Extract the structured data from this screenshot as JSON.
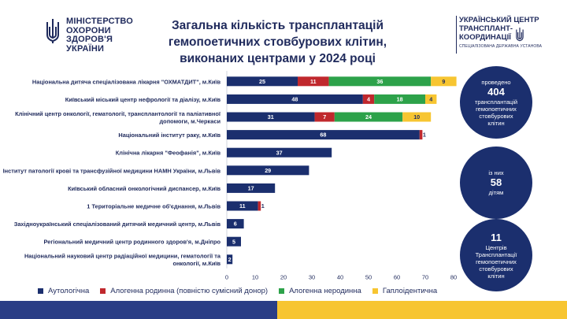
{
  "header": {
    "left_logo_lines": [
      "МІНІСТЕРСТВО",
      "ОХОРОНИ",
      "ЗДОРОВ'Я",
      "УКРАЇНИ"
    ],
    "title_lines": [
      "Загальна кількість трансплантацій",
      "гемопоетичних стовбурових клітин,",
      "виконаних центрами у 2024 році"
    ],
    "right_logo_lines": [
      "УКРАЇНСЬКИЙ ЦЕНТР",
      "ТРАНСПЛАНТ-",
      "КООРДИНАЦІЇ"
    ],
    "right_logo_sub": "СПЕЦІАЛІЗОВАНА ДЕРЖАВНА УСТАНОВА"
  },
  "colors": {
    "autologous": "#1b2f6e",
    "allo_related": "#c0282d",
    "allo_unrelated": "#2da24a",
    "haplo": "#f7c531",
    "navy": "#1b2f6e",
    "footer_blue": "#2a3e86",
    "footer_yellow": "#f7c531"
  },
  "chart_data": {
    "type": "bar",
    "orientation": "horizontal",
    "stacked": true,
    "title": "Загальна кількість трансплантацій гемопоетичних стовбурових клітин, виконаних центрами у 2024 році",
    "categories": [
      [
        "Національна дитяча спеціалізована лікарня \"ОХМАТДИТ\", м.Київ"
      ],
      [
        "Київський міський центр нефрології та діалізу, м.Київ"
      ],
      [
        "Клінічний центр онкології, гематології, трансплантології та паліативної",
        "допомоги, м.Черкаси"
      ],
      [
        "Національний інститут раку, м.Київ"
      ],
      [
        "Клінічна лікарня \"Феофанія\", м.Київ"
      ],
      [
        "Інститут патології крові та трансфузійної медицини НАМН України, м.Львів"
      ],
      [
        "Київський обласний онкологічний диспансер, м.Київ"
      ],
      [
        "1 Територіальне медичне об'єднання, м.Львів"
      ],
      [
        "Західноукраїнський спеціалізований дитячий медичний центр, м.Львів"
      ],
      [
        "Регіональний медичний центр родинного здоров'я, м.Дніпро"
      ],
      [
        "Національний науковий центр радіаційної медицини, гематології та",
        "онкології, м.Київ"
      ]
    ],
    "series": [
      {
        "name": "Аутологічна",
        "color": "#1b2f6e",
        "values": [
          25,
          48,
          31,
          68,
          37,
          29,
          17,
          11,
          6,
          5,
          2
        ]
      },
      {
        "name": "Алогенна родинна (повністю сумісний донор)",
        "color": "#c0282d",
        "values": [
          11,
          4,
          7,
          1,
          0,
          0,
          0,
          1,
          0,
          0,
          0
        ]
      },
      {
        "name": "Алогенна неродинна",
        "color": "#2da24a",
        "values": [
          36,
          18,
          24,
          0,
          0,
          0,
          0,
          0,
          0,
          0,
          0
        ]
      },
      {
        "name": "Гаплоідентична",
        "color": "#f7c531",
        "values": [
          9,
          4,
          10,
          0,
          0,
          0,
          0,
          0,
          0,
          0,
          0
        ]
      }
    ],
    "value_labels": [
      [
        "25",
        "11",
        "36",
        "9"
      ],
      [
        "48",
        "4",
        "18",
        "4"
      ],
      [
        "31",
        "7",
        "24",
        "10"
      ],
      [
        "68",
        "1",
        "",
        ""
      ],
      [
        "37",
        "",
        "",
        ""
      ],
      [
        "29",
        "",
        "",
        ""
      ],
      [
        "17",
        "",
        "",
        ""
      ],
      [
        "11",
        "1",
        "",
        ""
      ],
      [
        "6",
        "",
        "",
        ""
      ],
      [
        "5",
        "",
        "",
        ""
      ],
      [
        "2",
        "",
        "",
        ""
      ]
    ],
    "xlim": [
      0,
      80
    ],
    "xticks": [
      0,
      10,
      20,
      30,
      40,
      50,
      60,
      70,
      80
    ],
    "xlabel": "",
    "ylabel": "",
    "grid": false,
    "legend_position": "bottom"
  },
  "info": [
    {
      "top": "проведено",
      "value": "404",
      "bottom": [
        "трансплантацій",
        "гемопоетичних",
        "стовбурових",
        "клітин"
      ]
    },
    {
      "top": "із них",
      "value": "58",
      "bottom": [
        "дітям"
      ]
    },
    {
      "top": "",
      "value": "11",
      "bottom": [
        "Центрів",
        "Трансплантації",
        "гемопоетичних",
        "стовбурових",
        "клітин"
      ]
    }
  ]
}
